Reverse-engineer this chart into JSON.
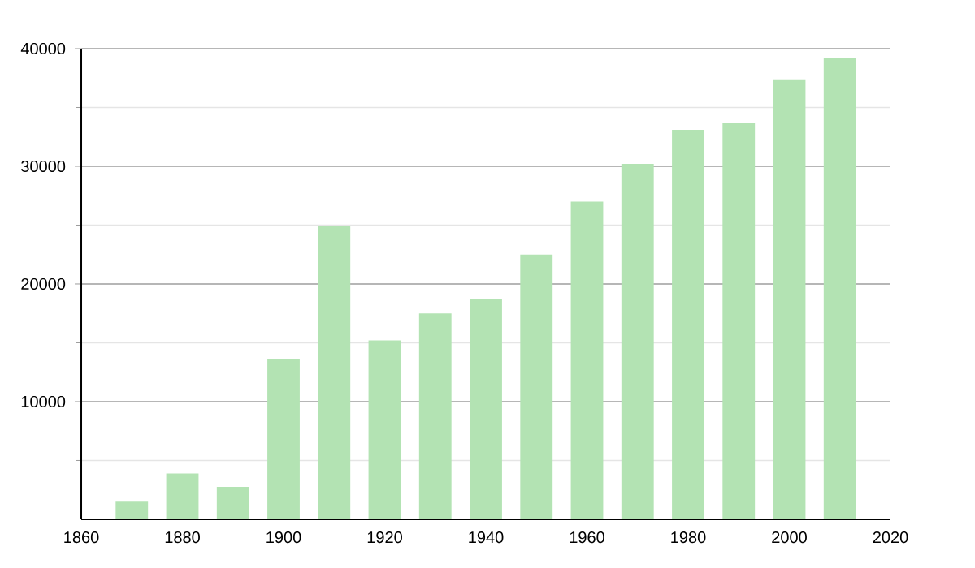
{
  "chart_data": {
    "type": "bar",
    "x": [
      1870,
      1880,
      1890,
      1900,
      1910,
      1920,
      1930,
      1940,
      1950,
      1960,
      1970,
      1980,
      1990,
      2000,
      2010
    ],
    "values": [
      1500,
      3900,
      2750,
      13650,
      24900,
      15200,
      17500,
      18750,
      22500,
      27000,
      30200,
      33100,
      33650,
      37400,
      39200
    ],
    "color": "#b3e3b3",
    "xlim": [
      1860,
      2020
    ],
    "xticks": [
      1860,
      1880,
      1900,
      1920,
      1940,
      1960,
      1980,
      2000,
      2020
    ],
    "ylim": [
      0,
      40000
    ],
    "yticks": [
      {
        "value": 5000,
        "label": null
      },
      10000,
      {
        "value": 15000,
        "label": null
      },
      20000,
      {
        "value": 25000,
        "label": null
      },
      30000,
      {
        "value": 35000,
        "label": null
      },
      40000
    ],
    "grid": "y"
  }
}
